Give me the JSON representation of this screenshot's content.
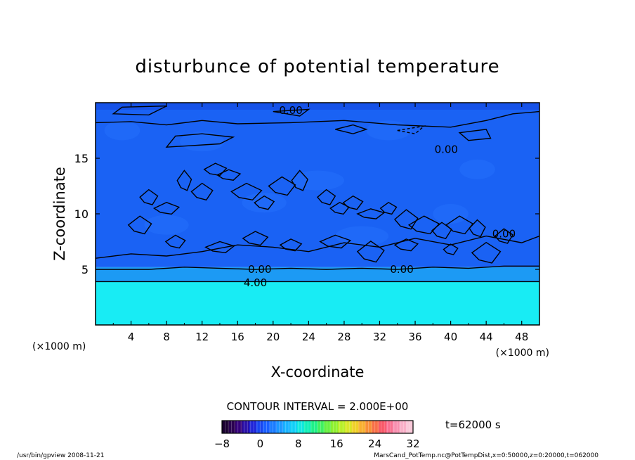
{
  "chart_data": {
    "type": "heatmap",
    "title": "disturbunce of potential temperature",
    "xlabel": "X-coordinate",
    "ylabel": "Z-coordinate",
    "x_unit_left": "(×1000 m)",
    "x_unit_right": "(×1000 m)",
    "xlim": [
      0,
      50
    ],
    "ylim": [
      0,
      20
    ],
    "x_ticks": [
      "4",
      "8",
      "12",
      "16",
      "20",
      "24",
      "28",
      "32",
      "36",
      "40",
      "44",
      "48"
    ],
    "y_ticks": [
      "5",
      "10",
      "15"
    ],
    "contour_interval_text": "CONTOUR INTERVAL = 2.000E+00",
    "contour_labels": [
      {
        "text": "0.00",
        "x": 22.0,
        "z": 19.3
      },
      {
        "text": "0.00",
        "x": 39.5,
        "z": 15.8
      },
      {
        "text": "0.00",
        "x": 46.0,
        "z": 8.2
      },
      {
        "text": "0.00",
        "x": 18.5,
        "z": 5.0
      },
      {
        "text": "0.00",
        "x": 34.5,
        "z": 5.0
      },
      {
        "text": "4.00",
        "x": 18.0,
        "z": 3.8
      }
    ],
    "colorbar": {
      "min": -8,
      "max": 32,
      "ticks": [
        "−8",
        "0",
        "8",
        "16",
        "24",
        "32"
      ],
      "colors": [
        "#1a0030",
        "#2a0050",
        "#34007a",
        "#2a10a8",
        "#1e24d8",
        "#1846f0",
        "#1a60ff",
        "#1a7cff",
        "#1c98ff",
        "#18b4ff",
        "#10d0f8",
        "#10e8e0",
        "#10f0b8",
        "#20f088",
        "#40f060",
        "#68f040",
        "#90f030",
        "#b8f028",
        "#d8e828",
        "#f0d028",
        "#f8b030",
        "#f89038",
        "#f87048",
        "#f85868",
        "#f87090",
        "#f890b0",
        "#f8b0c8",
        "#f8c8d8"
      ]
    },
    "time_label": "t=62000 s",
    "field_regions": [
      {
        "z_from": 0,
        "z_to": 3.9,
        "value": 10,
        "color": "#18ecf4"
      },
      {
        "z_from": 3.9,
        "z_to": 5.2,
        "value": 4,
        "color": "#1c9af4"
      },
      {
        "z_from": 5.2,
        "z_to": 20,
        "value": 0,
        "color": "#1a62f4"
      }
    ]
  },
  "footer": {
    "left": "/usr/bin/gpview  2008-11-21",
    "right": "MarsCand_PotTemp.nc@PotTempDist,x=0:50000,z=0:20000,t=062000"
  }
}
